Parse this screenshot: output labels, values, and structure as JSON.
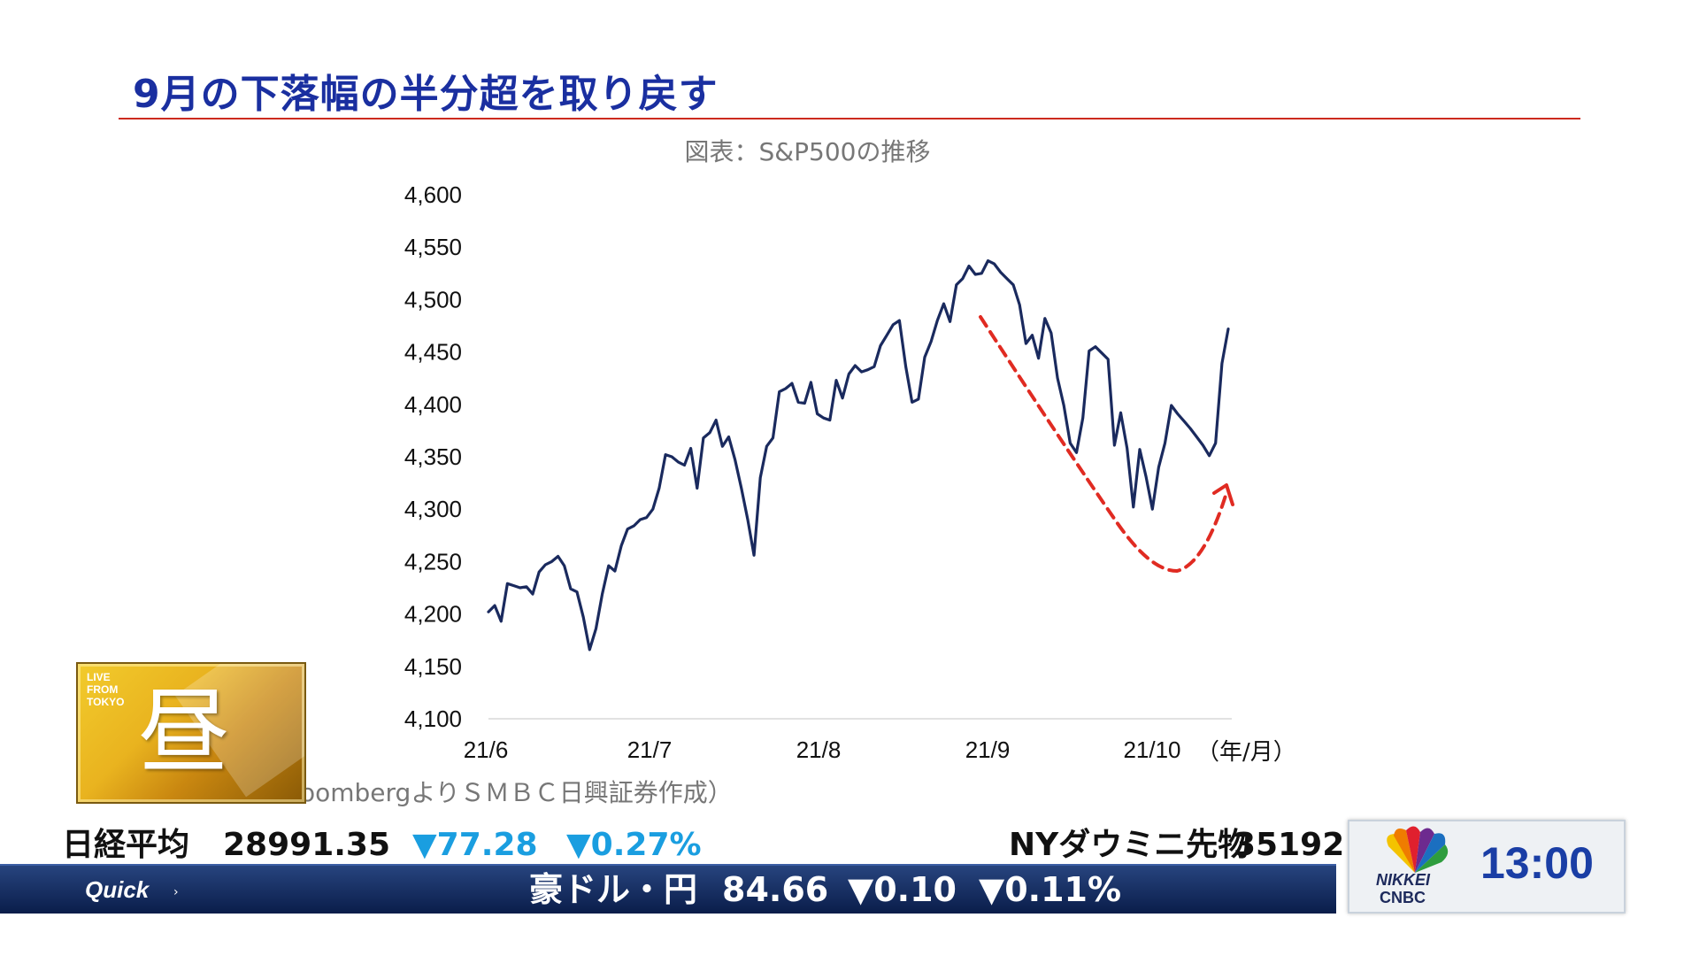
{
  "headline": "9月の下落幅の半分超を取り戻す",
  "chart_title": "図表：S&P500の推移",
  "source": "（出所）BloombergよりＳＭＢＣ日興証券作成）",
  "chart_data": {
    "type": "line",
    "title": "図表：S&P500の推移",
    "xlabel": "（年/月）",
    "ylabel": "",
    "ylim": [
      4100,
      4600
    ],
    "yticks": [
      4100,
      4150,
      4200,
      4250,
      4300,
      4350,
      4400,
      4450,
      4500,
      4550,
      4600
    ],
    "ytick_labels": [
      "4,100",
      "4,150",
      "4,200",
      "4,250",
      "4,300",
      "4,350",
      "4,400",
      "4,450",
      "4,500",
      "4,550",
      "4,600"
    ],
    "xtick_labels": [
      "21/6",
      "21/7",
      "21/8",
      "21/9",
      "21/10"
    ],
    "grid": false,
    "series": [
      {
        "color": "#1a2a5e",
        "values": [
          4202,
          4208,
          4193,
          4229,
          4227,
          4225,
          4226,
          4219,
          4240,
          4247,
          4250,
          4255,
          4246,
          4224,
          4221,
          4197,
          4166,
          4186,
          4219,
          4246,
          4241,
          4265,
          4281,
          4284,
          4290,
          4292,
          4300,
          4320,
          4352,
          4350,
          4345,
          4342,
          4358,
          4320,
          4368,
          4373,
          4385,
          4360,
          4369,
          4347,
          4320,
          4290,
          4256,
          4330,
          4360,
          4368,
          4412,
          4415,
          4420,
          4402,
          4401,
          4421,
          4391,
          4387,
          4385,
          4423,
          4406,
          4429,
          4437,
          4431,
          4433,
          4436,
          4456,
          4466,
          4476,
          4480,
          4436,
          4402,
          4405,
          4445,
          4460,
          4480,
          4496,
          4479,
          4514,
          4520,
          4532,
          4524,
          4525,
          4537,
          4534,
          4526,
          4520,
          4514,
          4495,
          4458,
          4466,
          4444,
          4482,
          4468,
          4425,
          4399,
          4363,
          4354,
          4387,
          4451,
          4455,
          4449,
          4443,
          4361,
          4392,
          4358,
          4302,
          4357,
          4331,
          4300,
          4340,
          4363,
          4399,
          4391,
          4384,
          4377,
          4369,
          4361,
          4351,
          4363,
          4439,
          4472
        ]
      }
    ],
    "annotations": [
      {
        "type": "dashed-arrow",
        "color": "#e02b22",
        "description": "9月の下落から反発"
      }
    ]
  },
  "badge": {
    "text": "LIVE\nFROM\nTOKYO",
    "kanji": "昼"
  },
  "ticker": {
    "row1": {
      "nikkei_label": "日経平均",
      "nikkei_value": "28991.35",
      "nikkei_change": "▼77.28",
      "nikkei_pct": "▼0.27%",
      "ny_label": "NYダウミニ先物",
      "ny_value": "35192"
    },
    "row2": {
      "brand": "Quick",
      "label": "豪ドル・円",
      "value": "84.66",
      "change": "▼0.10",
      "pct": "▼0.11%"
    }
  },
  "clock": "13:00",
  "logo": {
    "line1": "NIKKEI",
    "line2": "CNBC"
  }
}
